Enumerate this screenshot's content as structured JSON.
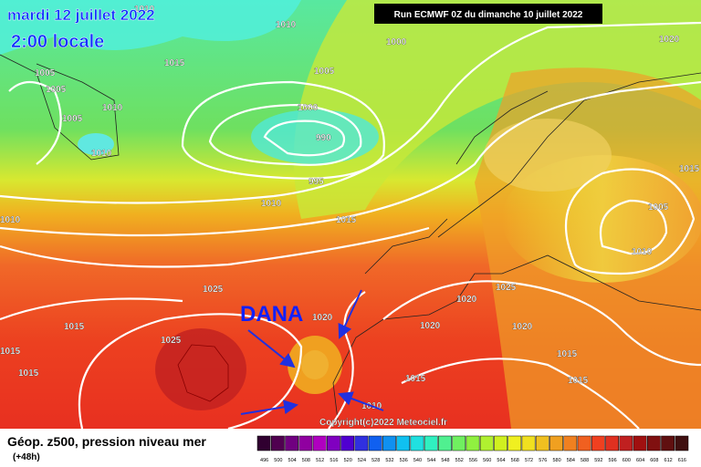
{
  "header": {
    "date": "mardi 12 juillet 2022",
    "time": "2:00 locale",
    "run": "Run ECMWF 0Z du dimanche 10 juillet 2022"
  },
  "annotation": {
    "label": "DANA"
  },
  "isobar_labels": [
    "1010",
    "1010",
    "1000",
    "1020",
    "1015",
    "1005",
    "1005",
    "1005",
    "1010",
    "1000",
    "1005",
    "990",
    "1010",
    "995",
    "1015",
    "1010",
    "1015",
    "1005",
    "1010",
    "1010",
    "1025",
    "1020",
    "1025",
    "1020",
    "1015",
    "1020",
    "1020",
    "1025",
    "1015",
    "1015",
    "1015",
    "1015",
    "1015",
    "1010"
  ],
  "copyright": "Copyright(c)2022 Meteociel.fr",
  "legend": {
    "title": "Géop. z500, pression niveau mer",
    "lead": "(+48h)",
    "scale": [
      496,
      500,
      504,
      508,
      512,
      516,
      520,
      524,
      528,
      532,
      536,
      540,
      544,
      548,
      552,
      556,
      560,
      564,
      568,
      572,
      576,
      580,
      584,
      588,
      592,
      596,
      600,
      604,
      608,
      612,
      616
    ]
  }
}
